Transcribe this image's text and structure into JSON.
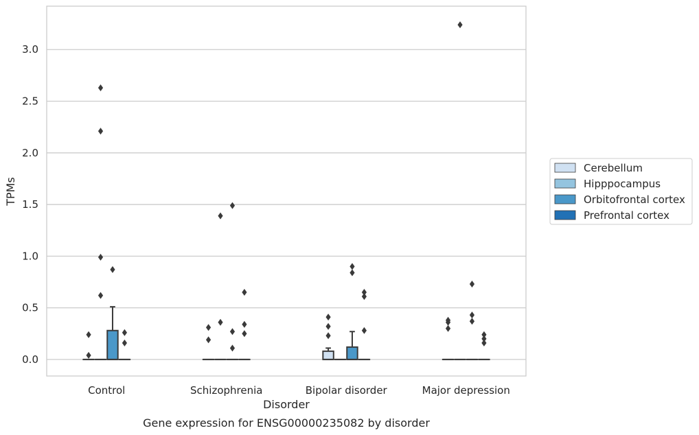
{
  "chart_data": {
    "type": "box",
    "title": "",
    "caption": "Gene expression for ENSG00000235082 by disorder",
    "xlabel": "Disorder",
    "ylabel": "TPMs",
    "categories": [
      "Control",
      "Schizophrenia",
      "Bipolar disorder",
      "Major depression"
    ],
    "y_ticks": [
      "0.0",
      "0.5",
      "1.0",
      "1.5",
      "2.0",
      "2.5",
      "3.0"
    ],
    "ylim": [
      -0.16,
      3.42
    ],
    "grid": "horizontal",
    "legend_position": "right",
    "series": [
      {
        "name": "Cerebellum",
        "color": "#d0e1f2",
        "boxes": [
          {
            "category": "Control",
            "q1": 0,
            "median": 0,
            "q3": 0,
            "whisker_low": 0,
            "whisker_high": 0,
            "outliers": [
              0.04,
              0.24
            ]
          },
          {
            "category": "Schizophrenia",
            "q1": 0,
            "median": 0,
            "q3": 0,
            "whisker_low": 0,
            "whisker_high": 0,
            "outliers": [
              0.19,
              0.31
            ]
          },
          {
            "category": "Bipolar disorder",
            "q1": 0,
            "median": 0,
            "q3": 0.08,
            "whisker_low": 0,
            "whisker_high": 0.11,
            "outliers": [
              0.23,
              0.32,
              0.41
            ]
          },
          {
            "category": "Major depression",
            "q1": 0,
            "median": 0,
            "q3": 0,
            "whisker_low": 0,
            "whisker_high": 0,
            "outliers": [
              0.3,
              0.36,
              0.38
            ]
          }
        ]
      },
      {
        "name": "Hipppocampus",
        "color": "#94c4df",
        "boxes": [
          {
            "category": "Control",
            "q1": 0,
            "median": 0,
            "q3": 0,
            "whisker_low": 0,
            "whisker_high": 0,
            "outliers": [
              0.62,
              0.99,
              2.21,
              2.63
            ]
          },
          {
            "category": "Schizophrenia",
            "q1": 0,
            "median": 0,
            "q3": 0,
            "whisker_low": 0,
            "whisker_high": 0,
            "outliers": [
              0.36,
              1.39
            ]
          },
          {
            "category": "Bipolar disorder",
            "q1": 0,
            "median": 0,
            "q3": 0,
            "whisker_low": 0,
            "whisker_high": 0,
            "outliers": []
          },
          {
            "category": "Major depression",
            "q1": 0,
            "median": 0,
            "q3": 0,
            "whisker_low": 0,
            "whisker_high": 0,
            "outliers": [
              3.24
            ]
          }
        ]
      },
      {
        "name": "Orbitofrontal cortex",
        "color": "#4a98c9",
        "boxes": [
          {
            "category": "Control",
            "q1": 0,
            "median": 0,
            "q3": 0.28,
            "whisker_low": 0,
            "whisker_high": 0.51,
            "outliers": [
              0.87
            ]
          },
          {
            "category": "Schizophrenia",
            "q1": 0,
            "median": 0,
            "q3": 0,
            "whisker_low": 0,
            "whisker_high": 0,
            "outliers": [
              0.11,
              0.27,
              1.49
            ]
          },
          {
            "category": "Bipolar disorder",
            "q1": 0,
            "median": 0,
            "q3": 0.12,
            "whisker_low": 0,
            "whisker_high": 0.27,
            "outliers": [
              0.84,
              0.9
            ]
          },
          {
            "category": "Major depression",
            "q1": 0,
            "median": 0,
            "q3": 0,
            "whisker_low": 0,
            "whisker_high": 0,
            "outliers": [
              0.37,
              0.43,
              0.73
            ]
          }
        ]
      },
      {
        "name": "Prefrontal cortex",
        "color": "#2171b5",
        "boxes": [
          {
            "category": "Control",
            "q1": 0,
            "median": 0,
            "q3": 0,
            "whisker_low": 0,
            "whisker_high": 0,
            "outliers": [
              0.16,
              0.26
            ]
          },
          {
            "category": "Schizophrenia",
            "q1": 0,
            "median": 0,
            "q3": 0,
            "whisker_low": 0,
            "whisker_high": 0,
            "outliers": [
              0.25,
              0.34,
              0.65
            ]
          },
          {
            "category": "Bipolar disorder",
            "q1": 0,
            "median": 0,
            "q3": 0,
            "whisker_low": 0,
            "whisker_high": 0,
            "outliers": [
              0.28,
              0.61,
              0.65
            ]
          },
          {
            "category": "Major depression",
            "q1": 0,
            "median": 0,
            "q3": 0,
            "whisker_low": 0,
            "whisker_high": 0,
            "outliers": [
              0.16,
              0.2,
              0.24
            ]
          }
        ]
      }
    ],
    "box_edge_color": "#3a3a3a",
    "outlier_color": "#3a3a3a",
    "grid_color": "#cccccc",
    "frame_color": "#cccccc"
  }
}
